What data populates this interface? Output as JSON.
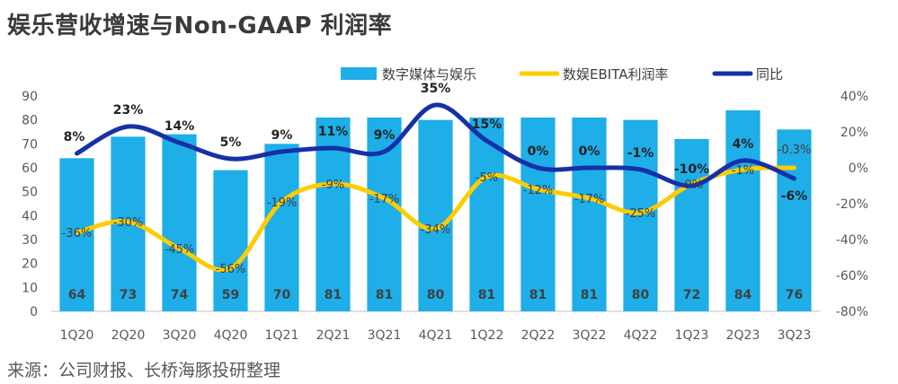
{
  "title": "娱乐营收增速与Non-GAAP 利润率",
  "source": "来源：公司财报、长桥海豚投研整理",
  "colors": {
    "bar": "#1eaee8",
    "margin": "#ffcc00",
    "yoy": "#1530a8"
  },
  "chart_data": {
    "type": "bar+line",
    "categories": [
      "1Q20",
      "2Q20",
      "3Q20",
      "4Q20",
      "1Q21",
      "2Q21",
      "3Q21",
      "4Q21",
      "1Q22",
      "2Q22",
      "3Q22",
      "4Q22",
      "1Q23",
      "2Q23",
      "3Q23"
    ],
    "legend_position": "top",
    "legend": [
      "数字媒体与娱乐",
      "数娱EBITA利润率",
      "同比"
    ],
    "left_axis": {
      "min": 0,
      "max": 90,
      "step": 10,
      "ticks": [
        "0",
        "10",
        "20",
        "30",
        "40",
        "50",
        "60",
        "70",
        "80",
        "90"
      ]
    },
    "right_axis": {
      "min": -80,
      "max": 40,
      "step": 20,
      "ticks": [
        "-80%",
        "-60%",
        "-40%",
        "-20%",
        "0%",
        "20%",
        "40%"
      ]
    },
    "series": [
      {
        "name": "数字媒体与娱乐",
        "type": "bar",
        "axis": "left",
        "values": [
          64,
          73,
          74,
          59,
          70,
          81,
          81,
          80,
          81,
          81,
          81,
          80,
          72,
          84,
          76
        ],
        "labels": [
          "64",
          "73",
          "74",
          "59",
          "70",
          "81",
          "81",
          "80",
          "81",
          "81",
          "81",
          "80",
          "72",
          "84",
          "76"
        ]
      },
      {
        "name": "数娱EBITA利润率",
        "type": "line",
        "axis": "right",
        "values": [
          -36,
          -30,
          -45,
          -56,
          -19,
          -9,
          -17,
          -34,
          -5,
          -12,
          -17,
          -25,
          -9,
          -1,
          0
        ],
        "labels": [
          "-36%",
          "-30%",
          "-45%",
          "-56%",
          "-19%",
          "-9%",
          "-17%",
          "-34%",
          "-5%",
          "-12%",
          "-17%",
          "-25%",
          "-9%",
          "-1%",
          "-0.3%"
        ]
      },
      {
        "name": "同比",
        "type": "line",
        "axis": "right",
        "values": [
          8,
          23,
          14,
          5,
          9,
          11,
          9,
          35,
          15,
          0,
          0,
          -1,
          -10,
          4,
          -6
        ],
        "labels": [
          "8%",
          "23%",
          "14%",
          "5%",
          "9%",
          "11%",
          "9%",
          "35%",
          "15%",
          "0%",
          "0%",
          "-1%",
          "-10%",
          "4%",
          "-6%"
        ]
      }
    ]
  }
}
